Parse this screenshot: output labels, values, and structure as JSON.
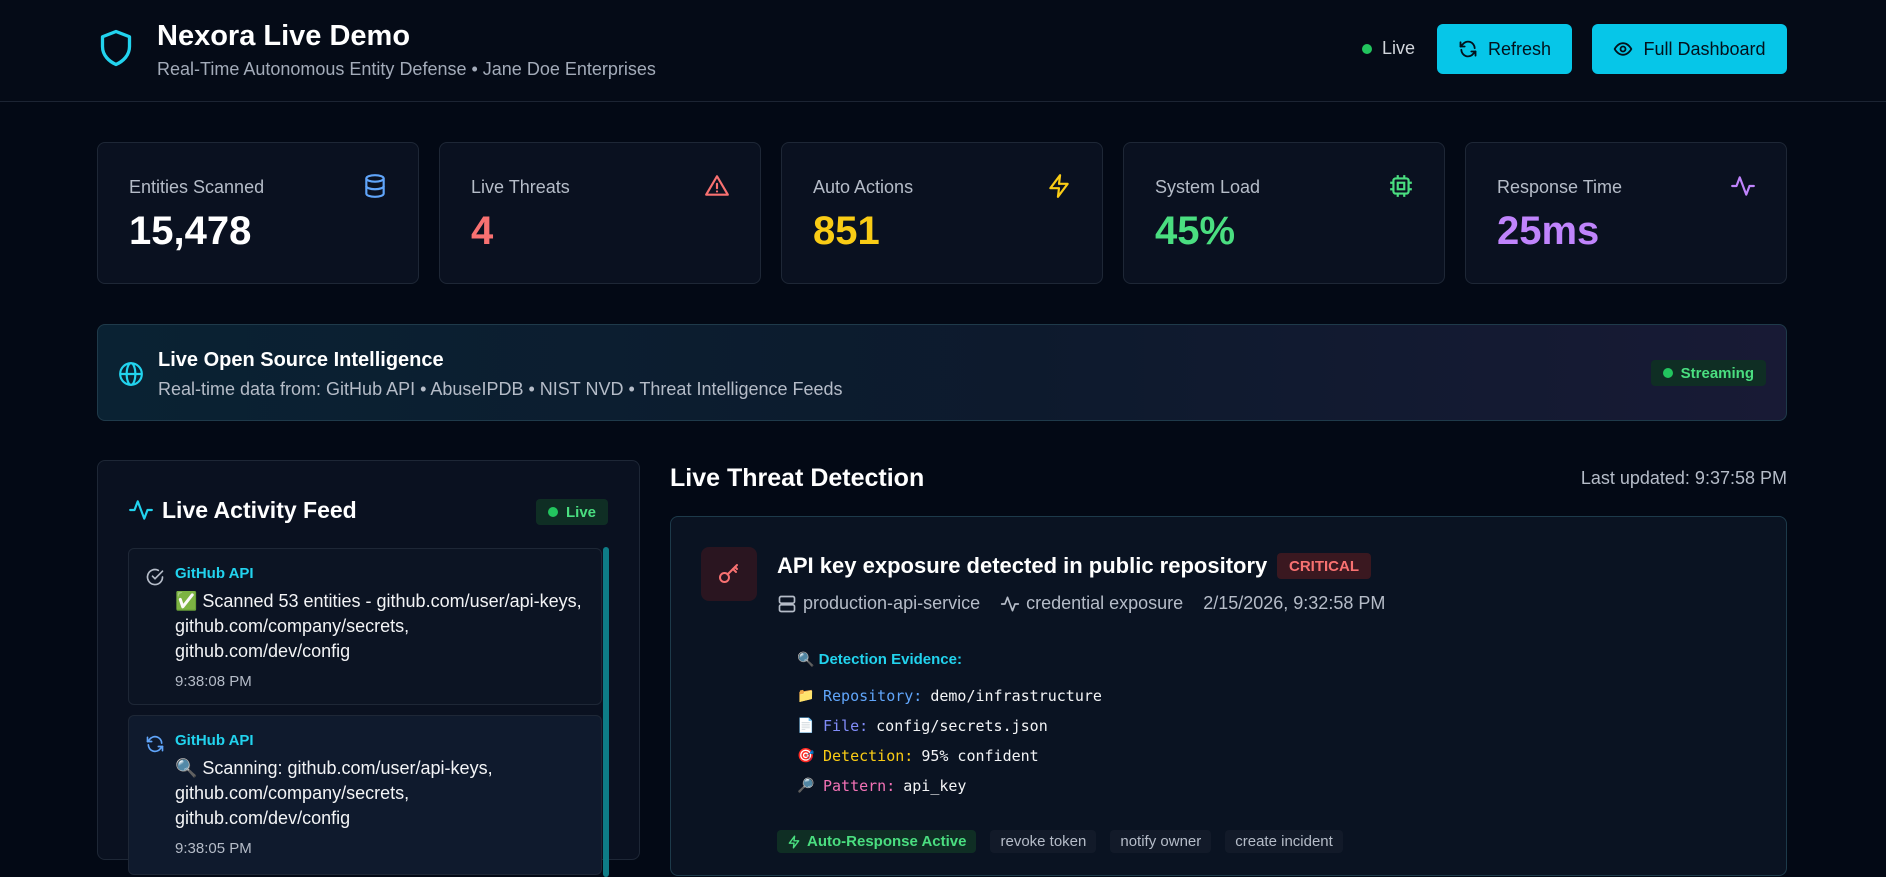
{
  "header": {
    "title": "Nexora Live Demo",
    "subtitle": "Real-Time Autonomous Entity Defense • Jane Doe Enterprises",
    "status_label": "Live",
    "refresh_label": "Refresh",
    "full_dashboard_label": "Full Dashboard"
  },
  "stats": [
    {
      "label": "Entities Scanned",
      "value": "15,478",
      "color": "#ffffff",
      "icon": "database-icon"
    },
    {
      "label": "Live Threats",
      "value": "4",
      "color": "#f87171",
      "icon": "warning-icon"
    },
    {
      "label": "Auto Actions",
      "value": "851",
      "color": "#facc15",
      "icon": "lightning-icon"
    },
    {
      "label": "System Load",
      "value": "45%",
      "color": "#4ade80",
      "icon": "cpu-icon"
    },
    {
      "label": "Response Time",
      "value": "25ms",
      "color": "#c084fc",
      "icon": "activity-icon"
    }
  ],
  "intel": {
    "title": "Live Open Source Intelligence",
    "subtitle": "Real-time data from: GitHub API • AbuseIPDB • NIST NVD • Threat Intelligence Feeds",
    "badge": "Streaming"
  },
  "feed": {
    "title": "Live Activity Feed",
    "badge": "Live",
    "items": [
      {
        "source": "GitHub API",
        "text": "✅ Scanned 53 entities - github.com/user/api-keys, github.com/company/secrets, github.com/dev/config",
        "time": "9:38:08 PM",
        "icon": "check-circle-icon"
      },
      {
        "source": "GitHub API",
        "text": "🔍 Scanning: github.com/user/api-keys, github.com/company/secrets, github.com/dev/config",
        "time": "9:38:05 PM",
        "icon": "refresh-icon"
      }
    ]
  },
  "threats": {
    "title": "Live Threat Detection",
    "last_updated": "Last updated: 9:37:58 PM",
    "items": [
      {
        "title": "API key exposure detected in public repository",
        "severity": "CRITICAL",
        "service": "production-api-service",
        "category": "credential exposure",
        "timestamp": "2/15/2026, 9:32:58 PM",
        "evidence_heading": "Detection Evidence:",
        "evidence": [
          {
            "emoji": "📁",
            "key": "Repository:",
            "value": "demo/infrastructure"
          },
          {
            "emoji": "📄",
            "key": "File:",
            "value": "config/secrets.json"
          },
          {
            "emoji": "🎯",
            "key": "Detection:",
            "value": "95% confident"
          },
          {
            "emoji": "🔎",
            "key": "Pattern:",
            "value": "api_key"
          }
        ],
        "auto_response": "Auto-Response Active",
        "actions": [
          "revoke token",
          "notify owner",
          "create incident"
        ]
      }
    ]
  }
}
